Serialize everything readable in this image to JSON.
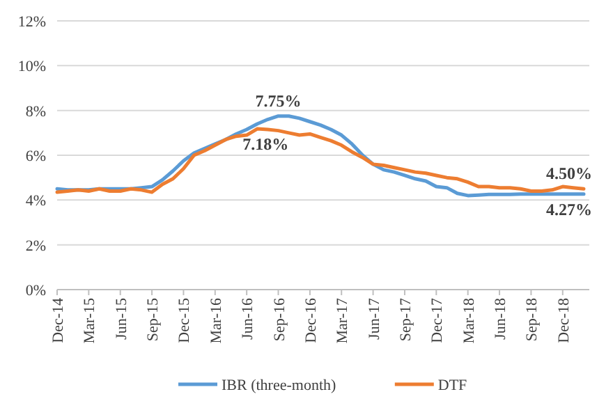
{
  "chart_data": {
    "type": "line",
    "categories": [
      "Dec-14",
      null,
      null,
      "Mar-15",
      null,
      null,
      "Jun-15",
      null,
      null,
      "Sep-15",
      null,
      null,
      "Dec-15",
      null,
      null,
      "Mar-16",
      null,
      null,
      "Jun-16",
      null,
      null,
      "Sep-16",
      null,
      null,
      "Dec-16",
      null,
      null,
      "Mar-17",
      null,
      null,
      "Jun-17",
      null,
      null,
      "Sep-17",
      null,
      null,
      "Dec-17",
      null,
      null,
      "Mar-18",
      null,
      null,
      "Jun-18",
      null,
      null,
      "Sep-18",
      null,
      null,
      "Dec-18",
      null,
      null
    ],
    "series": [
      {
        "name": "IBR (three-month)",
        "color": "#5b9bd5",
        "values": [
          4.5,
          4.45,
          4.45,
          4.45,
          4.5,
          4.5,
          4.5,
          4.5,
          4.55,
          4.6,
          4.9,
          5.3,
          5.75,
          6.1,
          6.3,
          6.5,
          6.7,
          6.95,
          7.15,
          7.4,
          7.6,
          7.75,
          7.75,
          7.65,
          7.5,
          7.35,
          7.15,
          6.9,
          6.5,
          6.0,
          5.6,
          5.35,
          5.25,
          5.1,
          4.95,
          4.85,
          4.6,
          4.55,
          4.3,
          4.2,
          4.22,
          4.25,
          4.25,
          4.25,
          4.27,
          4.27,
          4.27,
          4.27,
          4.27,
          4.27,
          4.27
        ],
        "value_labels": [
          null,
          null,
          null,
          null,
          null,
          null,
          null,
          null,
          null,
          null,
          null,
          null,
          null,
          null,
          null,
          null,
          null,
          null,
          null,
          null,
          null,
          "7.75%",
          null,
          null,
          null,
          null,
          null,
          null,
          null,
          null,
          null,
          null,
          null,
          null,
          null,
          null,
          null,
          null,
          null,
          null,
          null,
          null,
          null,
          null,
          null,
          null,
          null,
          null,
          null,
          null,
          "4.27%"
        ]
      },
      {
        "name": "DTF",
        "color": "#ed7d31",
        "values": [
          4.35,
          4.4,
          4.45,
          4.4,
          4.5,
          4.4,
          4.4,
          4.5,
          4.45,
          4.35,
          4.7,
          4.95,
          5.4,
          6.0,
          6.2,
          6.45,
          6.7,
          6.85,
          6.9,
          7.18,
          7.15,
          7.1,
          7.0,
          6.9,
          6.95,
          6.8,
          6.65,
          6.45,
          6.15,
          5.9,
          5.6,
          5.55,
          5.45,
          5.35,
          5.25,
          5.2,
          5.1,
          5.0,
          4.95,
          4.8,
          4.6,
          4.6,
          4.55,
          4.55,
          4.5,
          4.4,
          4.4,
          4.45,
          4.6,
          4.55,
          4.5
        ],
        "value_labels": [
          null,
          null,
          null,
          null,
          null,
          null,
          null,
          null,
          null,
          null,
          null,
          null,
          null,
          null,
          null,
          null,
          null,
          null,
          null,
          "7.18%",
          null,
          null,
          null,
          null,
          null,
          null,
          null,
          null,
          null,
          null,
          null,
          null,
          null,
          null,
          null,
          null,
          null,
          null,
          null,
          null,
          null,
          null,
          null,
          null,
          null,
          null,
          null,
          null,
          null,
          null,
          "4.50%"
        ]
      }
    ],
    "ylim": [
      0,
      12
    ],
    "yticks": [
      {
        "value": 0,
        "label": "0%"
      },
      {
        "value": 2,
        "label": "2%"
      },
      {
        "value": 4,
        "label": "4%"
      },
      {
        "value": 6,
        "label": "6%"
      },
      {
        "value": 8,
        "label": "8%"
      },
      {
        "value": 10,
        "label": "10%"
      },
      {
        "value": 12,
        "label": "12%"
      }
    ],
    "grid": "y",
    "legend": "bottom",
    "marker": "none",
    "line_style": "solid"
  }
}
